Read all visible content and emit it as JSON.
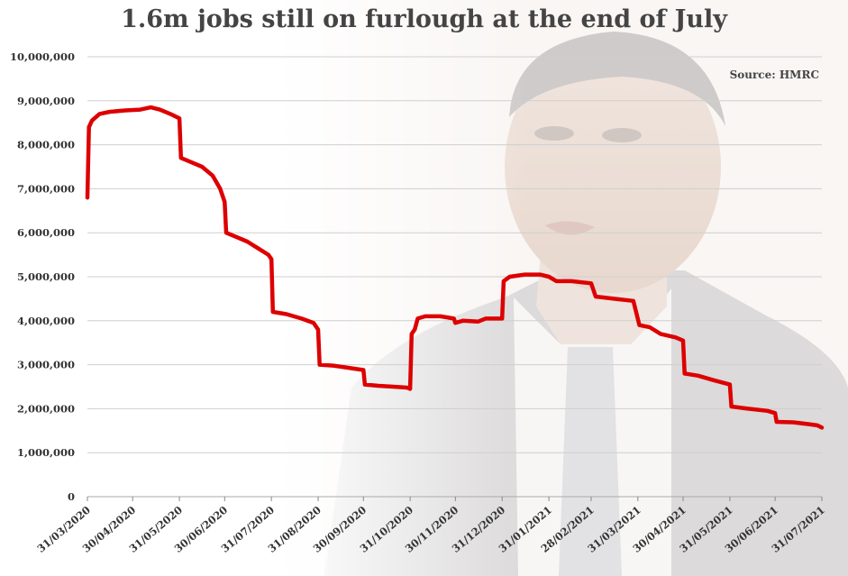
{
  "title": "1.6m jobs still on furlough at the end of July",
  "source": "Source: HMRC",
  "chart_data": {
    "type": "line",
    "title": "1.6m jobs still on furlough at the end of July",
    "source": "Source: HMRC",
    "xlabel": "",
    "ylabel": "",
    "ylim": [
      0,
      10000000
    ],
    "grid": true,
    "line_color": "#dd0000",
    "y_ticks": [
      0,
      1000000,
      2000000,
      3000000,
      4000000,
      5000000,
      6000000,
      7000000,
      8000000,
      9000000,
      10000000
    ],
    "y_tick_labels": [
      "0",
      "1,000,000",
      "2,000,000",
      "3,000,000",
      "4,000,000",
      "5,000,000",
      "6,000,000",
      "7,000,000",
      "8,000,000",
      "9,000,000",
      "10,000,000"
    ],
    "x_tick_labels": [
      "31/03/2020",
      "30/04/2020",
      "31/05/2020",
      "30/06/2020",
      "31/07/2020",
      "31/08/2020",
      "30/09/2020",
      "31/10/2020",
      "30/11/2020",
      "31/12/2020",
      "31/01/2021",
      "28/02/2021",
      "31/03/2021",
      "30/04/2021",
      "31/05/2021",
      "30/06/2021",
      "31/07/2021"
    ],
    "series": [
      {
        "values": [
          [
            "2020-03-31",
            6800000
          ],
          [
            "2020-04-01",
            8400000
          ],
          [
            "2020-04-03",
            8550000
          ],
          [
            "2020-04-08",
            8700000
          ],
          [
            "2020-04-15",
            8750000
          ],
          [
            "2020-04-25",
            8780000
          ],
          [
            "2020-05-05",
            8800000
          ],
          [
            "2020-05-12",
            8850000
          ],
          [
            "2020-05-18",
            8800000
          ],
          [
            "2020-05-25",
            8700000
          ],
          [
            "2020-05-31",
            8600000
          ],
          [
            "2020-06-01",
            7700000
          ],
          [
            "2020-06-08",
            7600000
          ],
          [
            "2020-06-15",
            7500000
          ],
          [
            "2020-06-22",
            7300000
          ],
          [
            "2020-06-27",
            7000000
          ],
          [
            "2020-06-30",
            6700000
          ],
          [
            "2020-07-01",
            6000000
          ],
          [
            "2020-07-08",
            5900000
          ],
          [
            "2020-07-15",
            5800000
          ],
          [
            "2020-07-22",
            5650000
          ],
          [
            "2020-07-29",
            5500000
          ],
          [
            "2020-07-31",
            5400000
          ],
          [
            "2020-08-01",
            4200000
          ],
          [
            "2020-08-10",
            4150000
          ],
          [
            "2020-08-20",
            4050000
          ],
          [
            "2020-08-28",
            3950000
          ],
          [
            "2020-08-31",
            3800000
          ],
          [
            "2020-09-01",
            3000000
          ],
          [
            "2020-09-10",
            2980000
          ],
          [
            "2020-09-20",
            2930000
          ],
          [
            "2020-09-30",
            2880000
          ],
          [
            "2020-10-01",
            2550000
          ],
          [
            "2020-10-10",
            2520000
          ],
          [
            "2020-10-20",
            2500000
          ],
          [
            "2020-10-29",
            2480000
          ],
          [
            "2020-10-31",
            2450000
          ],
          [
            "2020-11-01",
            3700000
          ],
          [
            "2020-11-03",
            3800000
          ],
          [
            "2020-11-05",
            4050000
          ],
          [
            "2020-11-10",
            4100000
          ],
          [
            "2020-11-20",
            4100000
          ],
          [
            "2020-11-29",
            4050000
          ],
          [
            "2020-11-30",
            3950000
          ],
          [
            "2020-12-05",
            4000000
          ],
          [
            "2020-12-15",
            3980000
          ],
          [
            "2020-12-20",
            4050000
          ],
          [
            "2020-12-31",
            4050000
          ],
          [
            "2021-01-01",
            4900000
          ],
          [
            "2021-01-05",
            5000000
          ],
          [
            "2021-01-15",
            5050000
          ],
          [
            "2021-01-25",
            5050000
          ],
          [
            "2021-01-31",
            5000000
          ],
          [
            "2021-02-05",
            4900000
          ],
          [
            "2021-02-15",
            4900000
          ],
          [
            "2021-02-28",
            4850000
          ],
          [
            "2021-03-03",
            4550000
          ],
          [
            "2021-03-15",
            4500000
          ],
          [
            "2021-03-28",
            4450000
          ],
          [
            "2021-04-01",
            3900000
          ],
          [
            "2021-04-08",
            3850000
          ],
          [
            "2021-04-15",
            3700000
          ],
          [
            "2021-04-25",
            3620000
          ],
          [
            "2021-04-30",
            3550000
          ],
          [
            "2021-05-01",
            2800000
          ],
          [
            "2021-05-10",
            2750000
          ],
          [
            "2021-05-20",
            2650000
          ],
          [
            "2021-05-31",
            2550000
          ],
          [
            "2021-06-01",
            2050000
          ],
          [
            "2021-06-12",
            2000000
          ],
          [
            "2021-06-25",
            1950000
          ],
          [
            "2021-06-30",
            1900000
          ],
          [
            "2021-07-01",
            1700000
          ],
          [
            "2021-07-12",
            1690000
          ],
          [
            "2021-07-22",
            1650000
          ],
          [
            "2021-07-28",
            1620000
          ],
          [
            "2021-07-31",
            1570000
          ]
        ]
      }
    ]
  }
}
